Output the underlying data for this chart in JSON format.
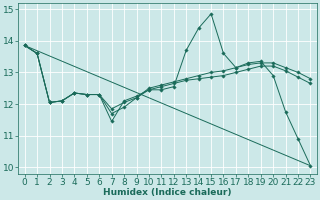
{
  "xlabel": "Humidex (Indice chaleur)",
  "bg_color": "#cce8e8",
  "grid_color": "#ffffff",
  "line_color": "#1a6b5a",
  "xlim": [
    -0.5,
    23.5
  ],
  "ylim": [
    9.8,
    15.2
  ],
  "xticks": [
    0,
    1,
    2,
    3,
    4,
    5,
    6,
    7,
    8,
    9,
    10,
    11,
    12,
    13,
    14,
    15,
    16,
    17,
    18,
    19,
    20,
    21,
    22,
    23
  ],
  "yticks": [
    10,
    11,
    12,
    13,
    14,
    15
  ],
  "line_main": {
    "x": [
      0,
      1,
      2,
      3,
      4,
      5,
      6,
      7,
      8,
      9,
      10,
      11,
      12,
      13,
      14,
      15,
      16,
      17,
      18,
      19,
      20,
      21,
      22,
      23
    ],
    "y": [
      13.85,
      13.6,
      12.05,
      12.1,
      12.35,
      12.3,
      12.3,
      11.45,
      12.1,
      12.25,
      12.45,
      12.45,
      12.55,
      13.7,
      14.4,
      14.85,
      13.6,
      13.15,
      13.3,
      13.35,
      12.9,
      11.75,
      10.9,
      10.05
    ]
  },
  "line_diag": {
    "x": [
      0,
      23
    ],
    "y": [
      13.85,
      10.05
    ]
  },
  "line_mid1": {
    "x": [
      0,
      1,
      2,
      3,
      4,
      5,
      6,
      7,
      8,
      9,
      10,
      11,
      12,
      13,
      14,
      15,
      16,
      17,
      18,
      19,
      20,
      21,
      22,
      23
    ],
    "y": [
      13.85,
      13.6,
      12.05,
      12.1,
      12.35,
      12.3,
      12.3,
      11.7,
      11.9,
      12.2,
      12.45,
      12.55,
      12.65,
      12.75,
      12.8,
      12.85,
      12.9,
      13.0,
      13.1,
      13.2,
      13.2,
      13.05,
      12.85,
      12.65
    ]
  },
  "line_mid2": {
    "x": [
      0,
      1,
      2,
      3,
      4,
      5,
      6,
      7,
      8,
      9,
      10,
      11,
      12,
      13,
      14,
      15,
      16,
      17,
      18,
      19,
      20,
      21,
      22,
      23
    ],
    "y": [
      13.85,
      13.6,
      12.05,
      12.1,
      12.35,
      12.3,
      12.3,
      11.85,
      12.05,
      12.2,
      12.5,
      12.6,
      12.7,
      12.8,
      12.9,
      13.0,
      13.05,
      13.15,
      13.25,
      13.3,
      13.3,
      13.15,
      13.0,
      12.8
    ]
  },
  "font_size": 6.5,
  "marker": "D",
  "marker_size": 1.8,
  "linewidth": 0.7
}
